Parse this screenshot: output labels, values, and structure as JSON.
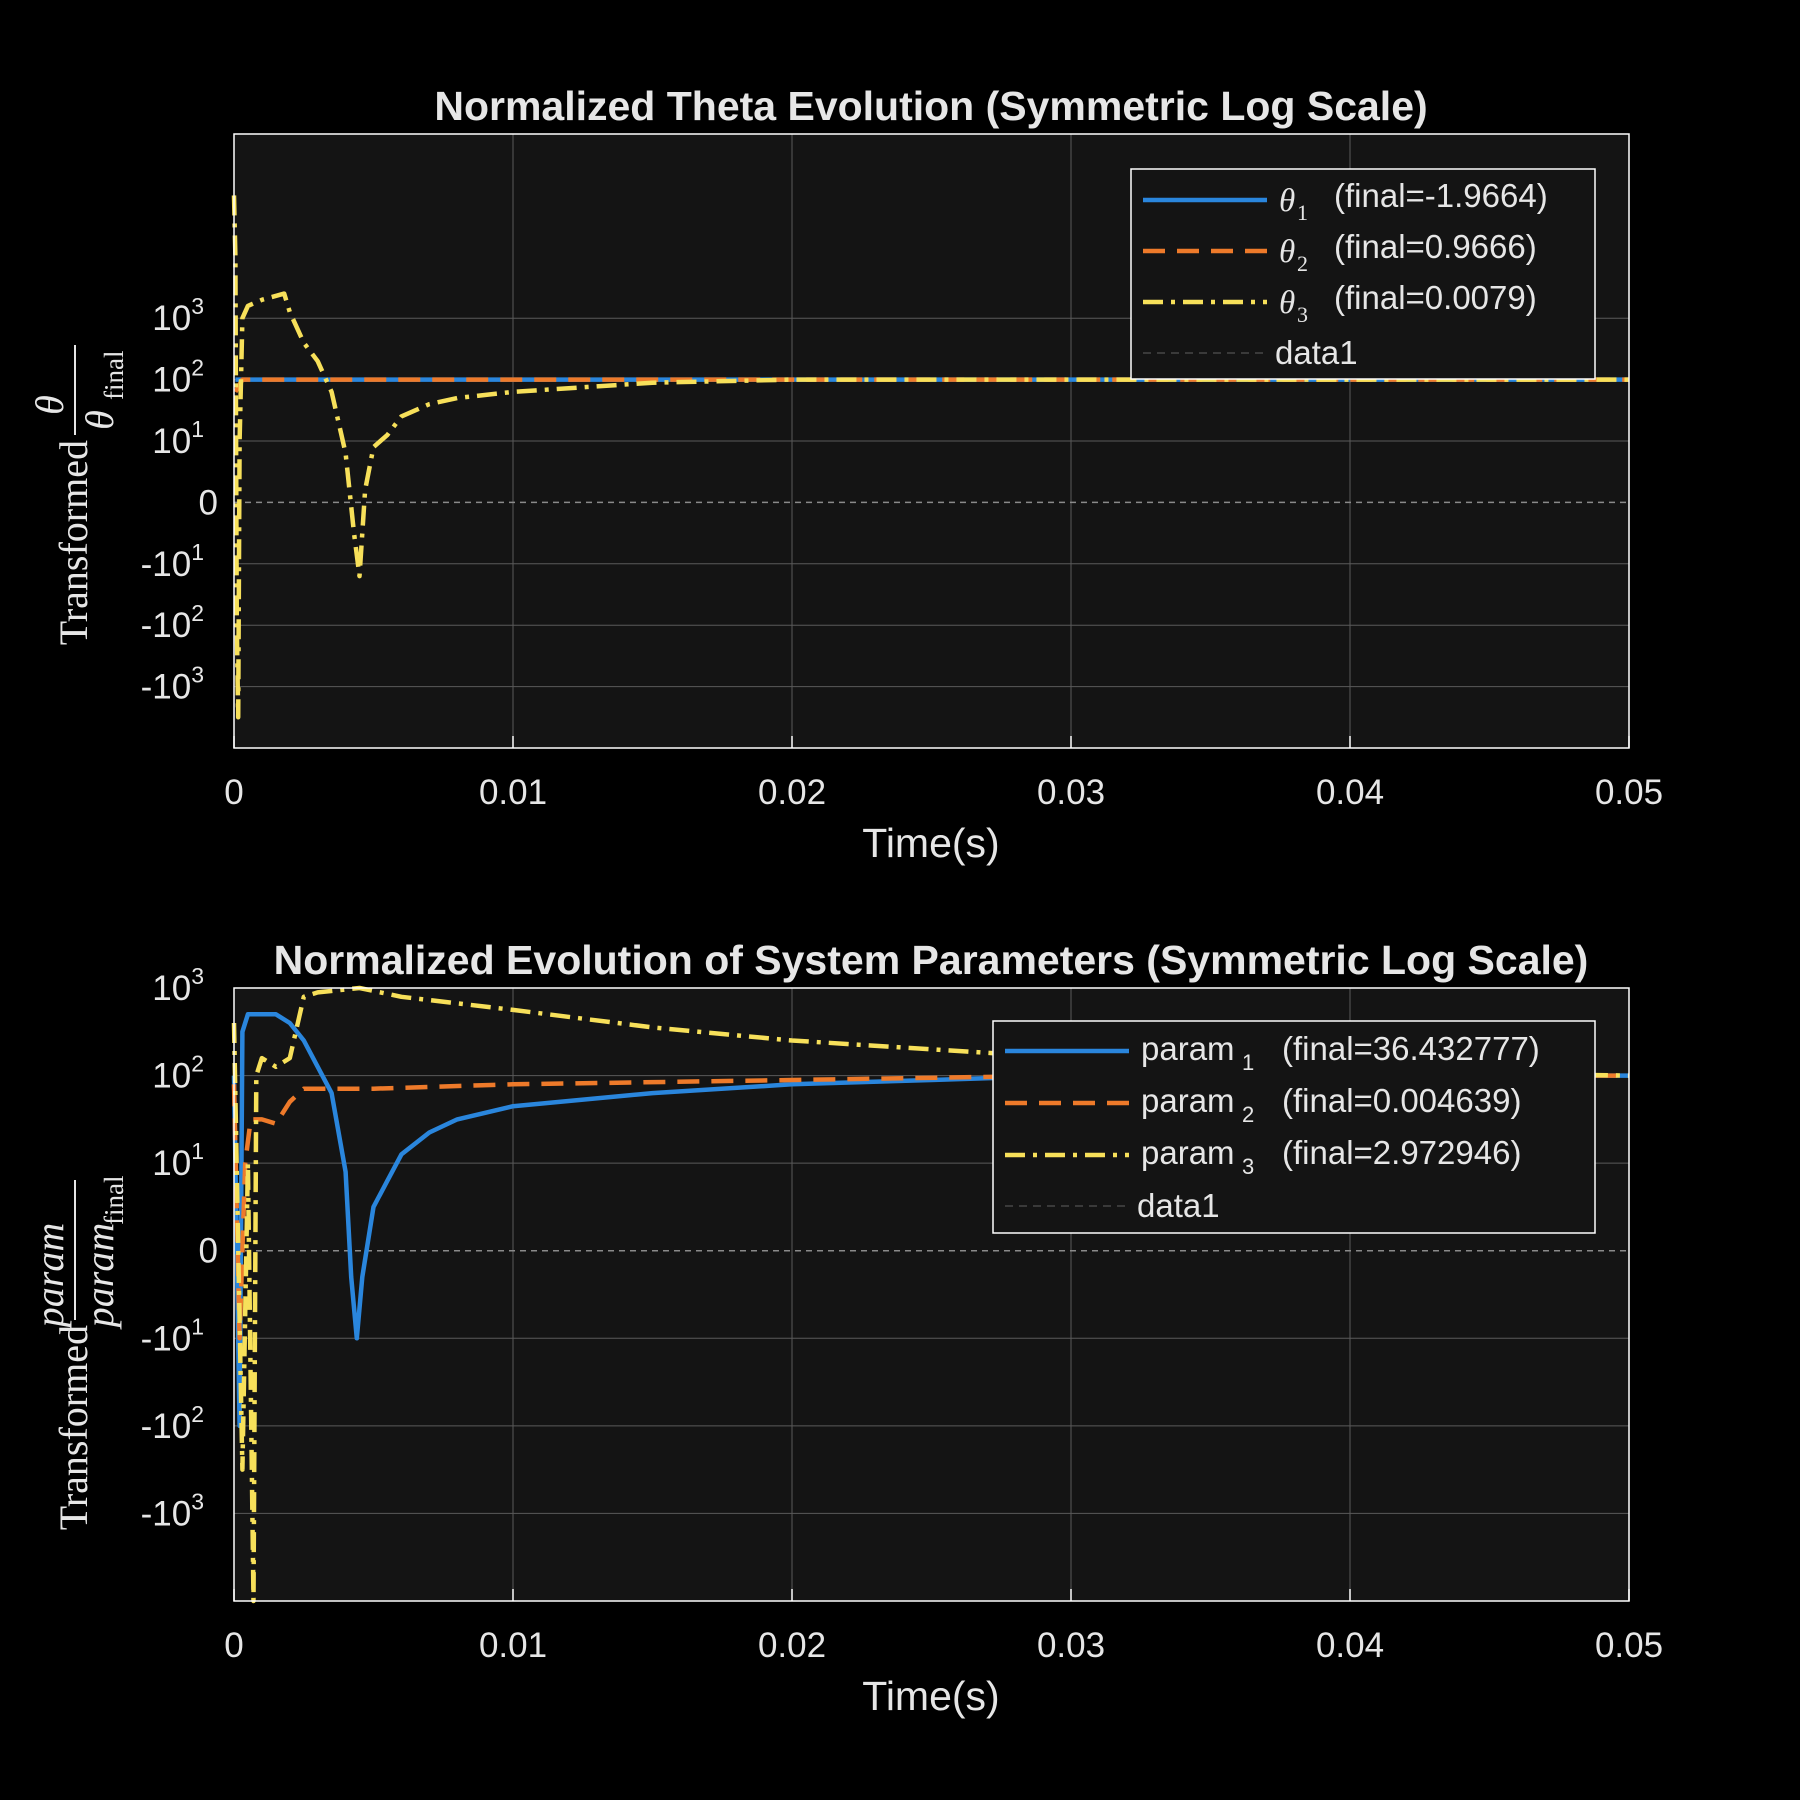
{
  "figure": {
    "background": "#000000",
    "axes_background": "#141414",
    "grid_color": "#5a5a5a",
    "spine_color": "#ffffff",
    "text_color": "#e6e6e6"
  },
  "chart_data": [
    {
      "type": "line",
      "title": "Normalized Theta Evolution (Symmetric Log Scale)",
      "xlabel": "Time(s)",
      "ylabel": "Transformed θ/θfinal",
      "ylabel_parts": {
        "prefix": "Transformed",
        "numerator": "θ",
        "denominator": "θ",
        "denominator_sub": "final"
      },
      "xlim": [
        0,
        0.05
      ],
      "x_ticks": [
        "0",
        "0.01",
        "0.02",
        "0.03",
        "0.04",
        "0.05"
      ],
      "x_tick_values": [
        0,
        0.01,
        0.02,
        0.03,
        0.04,
        0.05
      ],
      "yscale": "symlog",
      "ylim_transformed": [
        -4,
        6
      ],
      "y_ticks": [
        {
          "t": 3,
          "base": "10",
          "exp": "3"
        },
        {
          "t": 2,
          "base": "10",
          "exp": "2"
        },
        {
          "t": 1,
          "base": "10",
          "exp": "1"
        },
        {
          "t": 0,
          "base": "0",
          "exp": ""
        },
        {
          "t": -1,
          "base": "-10",
          "exp": "1"
        },
        {
          "t": -2,
          "base": "-10",
          "exp": "2"
        },
        {
          "t": -3,
          "base": "-10",
          "exp": "3"
        }
      ],
      "grid": true,
      "zero_line": true,
      "legend_position": "top-right",
      "series": [
        {
          "legend_symbol": "θ",
          "legend_sub": "1",
          "legend_text": "(final=-1.9664)",
          "color": "#2a86dd",
          "style": "solid",
          "points": [
            [
              5e-05,
              2.0
            ],
            [
              0.001,
              2.0
            ],
            [
              0.01,
              2.0
            ],
            [
              0.02,
              2.0
            ],
            [
              0.03,
              2.0
            ],
            [
              0.04,
              2.0
            ],
            [
              0.05,
              2.0
            ]
          ]
        },
        {
          "legend_symbol": "θ",
          "legend_sub": "2",
          "legend_text": "(final=0.9666)",
          "color": "#ee7a2a",
          "style": "dashed",
          "points": [
            [
              5e-05,
              1.8
            ],
            [
              0.0003,
              2.0
            ],
            [
              0.001,
              2.0
            ],
            [
              0.01,
              2.0
            ],
            [
              0.02,
              2.0
            ],
            [
              0.03,
              2.0
            ],
            [
              0.04,
              2.0
            ],
            [
              0.05,
              2.0
            ]
          ]
        },
        {
          "legend_symbol": "θ",
          "legend_sub": "3",
          "legend_text": "(final=0.0079)",
          "color": "#f7e05a",
          "style": "dashdot",
          "points": [
            [
              0.0,
              5.0
            ],
            [
              5e-05,
              4.0
            ],
            [
              0.0001,
              -2.0
            ],
            [
              0.00015,
              -3.5
            ],
            [
              0.0002,
              1.0
            ],
            [
              0.0003,
              3.0
            ],
            [
              0.0005,
              3.2
            ],
            [
              0.001,
              3.3
            ],
            [
              0.0018,
              3.4
            ],
            [
              0.002,
              3.1
            ],
            [
              0.0025,
              2.6
            ],
            [
              0.003,
              2.3
            ],
            [
              0.0035,
              1.8
            ],
            [
              0.004,
              0.8
            ],
            [
              0.0043,
              -0.5
            ],
            [
              0.0045,
              -1.2
            ],
            [
              0.0047,
              0.2
            ],
            [
              0.005,
              0.9
            ],
            [
              0.0055,
              1.1
            ],
            [
              0.006,
              1.4
            ],
            [
              0.007,
              1.6
            ],
            [
              0.008,
              1.7
            ],
            [
              0.01,
              1.8
            ],
            [
              0.015,
              1.95
            ],
            [
              0.02,
              2.0
            ],
            [
              0.03,
              2.0
            ],
            [
              0.04,
              2.0
            ],
            [
              0.05,
              2.0
            ]
          ]
        },
        {
          "legend_symbol": "",
          "legend_sub": "",
          "legend_text": "data1",
          "color": "#1c1c1c",
          "style": "zero",
          "points": []
        }
      ]
    },
    {
      "type": "line",
      "title": "Normalized Evolution of System Parameters (Symmetric Log Scale)",
      "xlabel": "Time(s)",
      "ylabel": "Transformed param/paramfinal",
      "ylabel_parts": {
        "prefix": "Transformed",
        "numerator": "param",
        "denominator": "param",
        "denominator_sub": "final"
      },
      "xlim": [
        0,
        0.05
      ],
      "x_ticks": [
        "0",
        "0.01",
        "0.02",
        "0.03",
        "0.04",
        "0.05"
      ],
      "x_tick_values": [
        0,
        0.01,
        0.02,
        0.03,
        0.04,
        0.05
      ],
      "yscale": "symlog",
      "ylim_transformed": [
        -4,
        3
      ],
      "y_ticks": [
        {
          "t": 3,
          "base": "10",
          "exp": "3"
        },
        {
          "t": 2,
          "base": "10",
          "exp": "2"
        },
        {
          "t": 1,
          "base": "10",
          "exp": "1"
        },
        {
          "t": 0,
          "base": "0",
          "exp": ""
        },
        {
          "t": -1,
          "base": "-10",
          "exp": "1"
        },
        {
          "t": -2,
          "base": "-10",
          "exp": "2"
        },
        {
          "t": -3,
          "base": "-10",
          "exp": "3"
        }
      ],
      "grid": true,
      "zero_line": true,
      "legend_position": "top-right",
      "series": [
        {
          "legend_symbol": "param",
          "legend_sub": "1",
          "legend_text": "(final=36.432777)",
          "color": "#2a86dd",
          "style": "solid",
          "points": [
            [
              0.0,
              2.0
            ],
            [
              0.0002,
              -2.0
            ],
            [
              0.0003,
              2.5
            ],
            [
              0.0005,
              2.7
            ],
            [
              0.001,
              2.7
            ],
            [
              0.0015,
              2.7
            ],
            [
              0.002,
              2.6
            ],
            [
              0.0025,
              2.4
            ],
            [
              0.003,
              2.1
            ],
            [
              0.0035,
              1.8
            ],
            [
              0.004,
              0.9
            ],
            [
              0.0042,
              -0.3
            ],
            [
              0.0044,
              -1.0
            ],
            [
              0.0046,
              -0.3
            ],
            [
              0.005,
              0.5
            ],
            [
              0.0055,
              0.8
            ],
            [
              0.006,
              1.1
            ],
            [
              0.007,
              1.35
            ],
            [
              0.008,
              1.5
            ],
            [
              0.01,
              1.65
            ],
            [
              0.015,
              1.8
            ],
            [
              0.02,
              1.9
            ],
            [
              0.025,
              1.95
            ],
            [
              0.03,
              2.0
            ],
            [
              0.04,
              2.0
            ],
            [
              0.05,
              2.0
            ]
          ]
        },
        {
          "legend_symbol": "param",
          "legend_sub": "2",
          "legend_text": "(final=0.004639)",
          "color": "#ee7a2a",
          "style": "dashed",
          "points": [
            [
              0.0,
              1.9
            ],
            [
              0.0002,
              -1.0
            ],
            [
              0.0004,
              1.0
            ],
            [
              0.0006,
              1.5
            ],
            [
              0.001,
              1.5
            ],
            [
              0.0015,
              1.45
            ],
            [
              0.002,
              1.7
            ],
            [
              0.0025,
              1.85
            ],
            [
              0.003,
              1.85
            ],
            [
              0.005,
              1.85
            ],
            [
              0.01,
              1.9
            ],
            [
              0.02,
              1.95
            ],
            [
              0.03,
              2.0
            ],
            [
              0.04,
              2.0
            ],
            [
              0.05,
              2.0
            ]
          ]
        },
        {
          "legend_symbol": "param",
          "legend_sub": "3",
          "legend_text": "(final=2.972946)",
          "color": "#f7e05a",
          "style": "dashdot",
          "points": [
            [
              0.0,
              2.6
            ],
            [
              0.0003,
              -2.5
            ],
            [
              0.0005,
              1.0
            ],
            [
              0.0007,
              -4.0
            ],
            [
              0.0008,
              2.0
            ],
            [
              0.001,
              2.2
            ],
            [
              0.0015,
              2.1
            ],
            [
              0.002,
              2.2
            ],
            [
              0.0025,
              2.9
            ],
            [
              0.003,
              2.95
            ],
            [
              0.0045,
              3.0
            ],
            [
              0.006,
              2.9
            ],
            [
              0.01,
              2.75
            ],
            [
              0.015,
              2.55
            ],
            [
              0.02,
              2.4
            ],
            [
              0.025,
              2.3
            ],
            [
              0.03,
              2.2
            ],
            [
              0.035,
              2.12
            ],
            [
              0.04,
              2.05
            ],
            [
              0.05,
              2.0
            ]
          ]
        },
        {
          "legend_symbol": "",
          "legend_sub": "",
          "legend_text": "data1",
          "color": "#1c1c1c",
          "style": "zero",
          "points": []
        }
      ]
    }
  ]
}
